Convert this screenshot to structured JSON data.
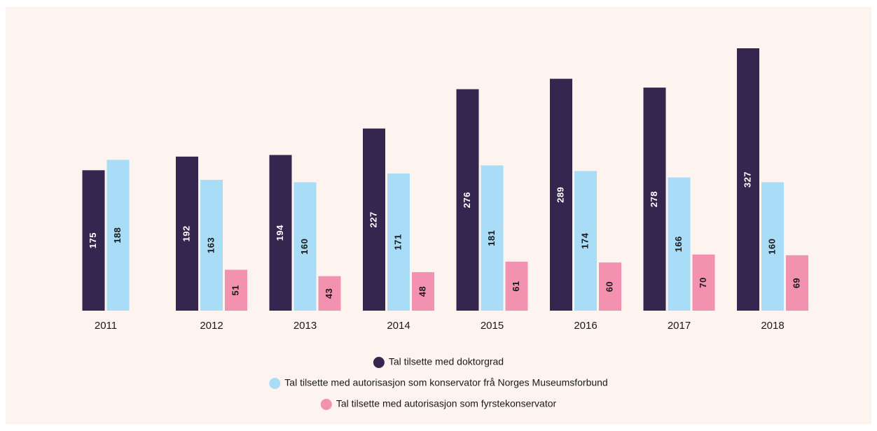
{
  "chart_data": {
    "type": "bar",
    "categories": [
      "2011",
      "2012",
      "2013",
      "2014",
      "2015",
      "2016",
      "2017",
      "2018"
    ],
    "series": [
      {
        "name": "Tal tilsette med doktorgrad",
        "color": "#35264f",
        "label_color": "#ffffff",
        "values": [
          175,
          192,
          194,
          227,
          276,
          289,
          278,
          327
        ]
      },
      {
        "name": "Tal tilsette med autorisasjon som konservator frå Norges Museumsforbund",
        "color": "#a8dcf7",
        "label_color": "#1a1a1a",
        "values": [
          188,
          163,
          160,
          171,
          181,
          174,
          166,
          160
        ]
      },
      {
        "name": "Tal tilsette med autorisasjon som fyrstekonservator",
        "color": "#f291b0",
        "label_color": "#1a1a1a",
        "values": [
          null,
          51,
          43,
          48,
          61,
          60,
          70,
          69
        ]
      }
    ]
  }
}
